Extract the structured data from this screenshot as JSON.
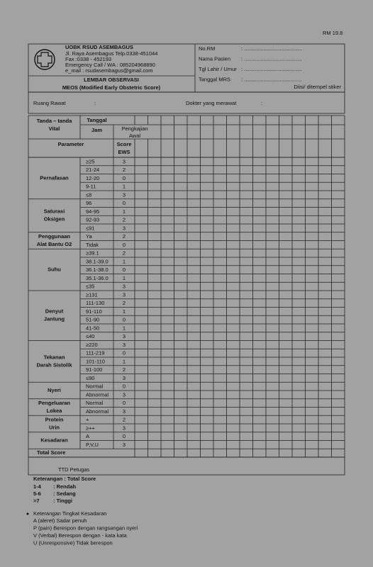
{
  "rm_code": "RM 19.8",
  "header": {
    "hospital": "UOBK RSUD ASEMBAGUS",
    "address": [
      "Jl. Raya Asembagus Telp.0338-451044",
      "Fax :0338 - 452193",
      "Emergency Call / WA : 085204968890",
      "e_mail : rsudasembagus@gmail.com"
    ],
    "title": "LEMBAR OBSERVASI",
    "subtitle": "MEOS (Modified Early Obstetric Score)",
    "fields": [
      {
        "label": "No.RM",
        "value": ": ......................................."
      },
      {
        "label": "Nama Pasien",
        "value": ": ......................................."
      },
      {
        "label": "Tgl Lahir / Umur",
        "value": ": ......................................."
      },
      {
        "label": "Tanggal MRS",
        "value": ": ......................................."
      }
    ],
    "sticker_note": "Diisi/ ditempel stiker"
  },
  "info": {
    "ruang": "Ruang Rawat",
    "ruang_colon": ":",
    "dokter": "Dokter yang merawat",
    "dokter_colon": ":"
  },
  "table": {
    "head": {
      "vital": [
        "Tanda – tanda",
        "Vital"
      ],
      "tanggal": "Tanggal",
      "jam": "Jam",
      "pengkajian": [
        "Pengkajian",
        "Awal"
      ],
      "parameter": "Parameter",
      "score": [
        "Score",
        "EWS"
      ]
    },
    "groups": [
      {
        "name": [
          "Pernafasan"
        ],
        "rows": [
          [
            "≥25",
            3
          ],
          [
            "21-24",
            2
          ],
          [
            "12-20",
            0
          ],
          [
            "9-11",
            1
          ],
          [
            "≤8",
            3
          ]
        ]
      },
      {
        "name": [
          "Saturasi",
          "Oksigen"
        ],
        "rows": [
          [
            "96",
            0
          ],
          [
            "94-95",
            1
          ],
          [
            "92-93",
            2
          ],
          [
            "≤91",
            3
          ]
        ]
      },
      {
        "name": [
          "Penggunaan",
          "Alat Bantu O2"
        ],
        "rows": [
          [
            "Ya",
            2
          ],
          [
            "Tidak",
            0
          ]
        ]
      },
      {
        "name": [
          "Suhu"
        ],
        "rows": [
          [
            "≥39.1",
            2
          ],
          [
            "38.1-39.0",
            1
          ],
          [
            "36.1-38.0",
            0
          ],
          [
            "35.1-36.0",
            1
          ],
          [
            "≤35",
            3
          ]
        ]
      },
      {
        "name": [
          "Denyut",
          "Jantung"
        ],
        "rows": [
          [
            "≥131",
            3
          ],
          [
            "111-130",
            2
          ],
          [
            "91-110",
            1
          ],
          [
            "51-90",
            0
          ],
          [
            "41-50",
            1
          ],
          [
            "≤40",
            3
          ]
        ]
      },
      {
        "name": [
          "Tekanan",
          "Darah Sistolik"
        ],
        "rows": [
          [
            "≥220",
            3
          ],
          [
            "111-219",
            0
          ],
          [
            "101-110",
            1
          ],
          [
            "91-100",
            2
          ],
          [
            "≤90",
            3
          ]
        ]
      },
      {
        "name": [
          "Nyeri"
        ],
        "rows": [
          [
            "Normal",
            0
          ],
          [
            "Abnormal",
            3
          ]
        ]
      },
      {
        "name": [
          "Pengeluaran",
          "Lokea"
        ],
        "rows": [
          [
            "Normal",
            0
          ],
          [
            "Abnormal",
            3
          ]
        ]
      },
      {
        "name": [
          "Protein",
          "Urin"
        ],
        "rows": [
          [
            "+",
            2
          ],
          [
            "≥++",
            3
          ]
        ]
      },
      {
        "name": [
          "Kesadaran"
        ],
        "rows": [
          [
            "A",
            0
          ],
          [
            "P,V,U",
            3
          ]
        ]
      }
    ],
    "total": "Total Score"
  },
  "signature": "TTD Petugas",
  "legend": {
    "title": "Keterangan : Total Score",
    "rows": [
      [
        "1-4",
        ": Rendah"
      ],
      [
        "5-6",
        ": Sedang"
      ],
      [
        ">7",
        ": Tinggi"
      ]
    ],
    "consciousness_title": "Keterangan Tingkat Kesadaran",
    "consciousness": [
      "A (aleret) Sadar penuh",
      "P (pain) Berespon dengan rangsangan nyeri",
      "V (Verbal) Berespon dengan - kata kata",
      "U (Unresponsive) Tidak berespon"
    ]
  }
}
